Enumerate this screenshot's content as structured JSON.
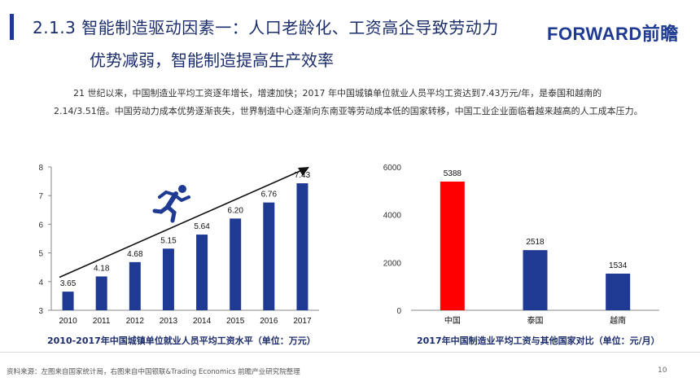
{
  "header": {
    "title_line1": "2.1.3 智能制造驱动因素一：人口老龄化、工资高企导致劳动力",
    "title_line2": "优势减弱，智能制造提高生产效率",
    "logo_en": "FORWARD",
    "logo_cn": "前瞻"
  },
  "body": {
    "paragraph_line1": "21 世纪以来，中国制造业平均工资逐年增长，增速加快；2017 年中国城镇单位就业人员平均工资达到7.43万元/年，是泰国和越南的",
    "paragraph_line2": "2.14/3.51倍。中国劳动力成本优势逐渐丧失，世界制造中心逐渐向东南亚等劳动成本低的国家转移，中国工业企业面临着越来越高的人工成本压力。"
  },
  "chart_data": [
    {
      "type": "bar",
      "title": "2010-2017年中国城镇单位就业人员平均工资水平（单位：万元）",
      "categories": [
        "2010",
        "2011",
        "2012",
        "2013",
        "2014",
        "2015",
        "2016",
        "2017"
      ],
      "values": [
        3.65,
        4.18,
        4.68,
        5.15,
        5.64,
        6.2,
        6.76,
        7.43
      ],
      "value_labels": [
        "3.65",
        "4.18",
        "4.68",
        "5.15",
        "5.64",
        "6.20",
        "6.76",
        "7.43"
      ],
      "ylim": [
        3,
        8
      ],
      "yticks": [
        "3",
        "4",
        "5",
        "6",
        "7",
        "8"
      ],
      "bar_color": "#1f3a93",
      "annotation": "trend-arrow-with-runner-icon"
    },
    {
      "type": "bar",
      "title": "2017年中国制造业平均工资与其他国家对比（单位：元/月）",
      "categories": [
        "中国",
        "泰国",
        "越南"
      ],
      "values": [
        5388,
        2518,
        1534
      ],
      "value_labels": [
        "5388",
        "2518",
        "1534"
      ],
      "ylim": [
        0,
        6000
      ],
      "yticks": [
        "0",
        "2000",
        "4000",
        "6000"
      ],
      "colors": [
        "#ff0000",
        "#1f3a93",
        "#1f3a93"
      ]
    }
  ],
  "footer": {
    "source": "资料来源：左图来自国家统计局，右图来自中国银联&Trading Economics 前瞻产业研究院整理",
    "page": "10"
  }
}
